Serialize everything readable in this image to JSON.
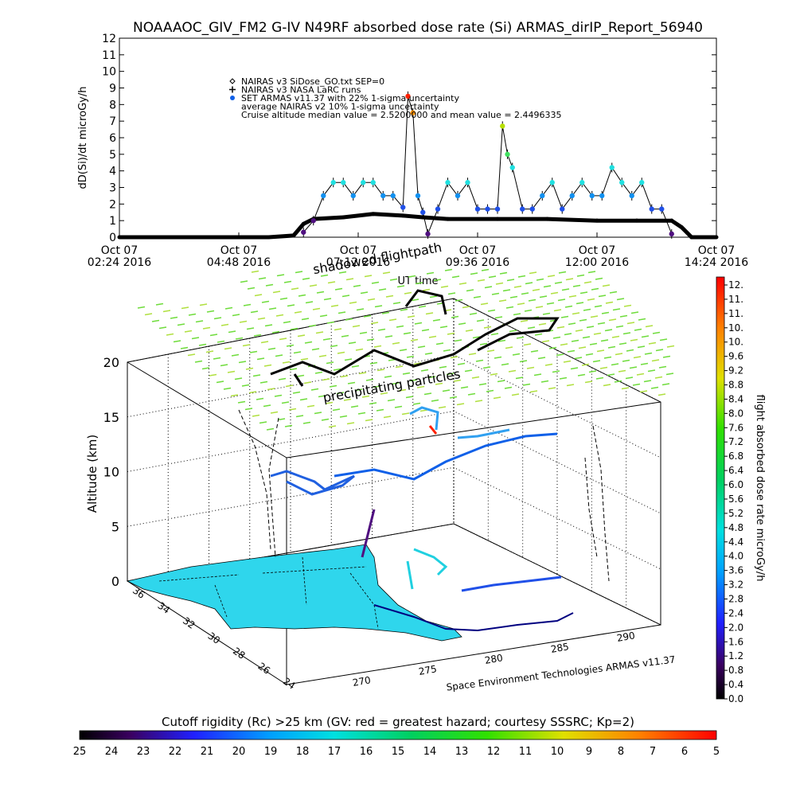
{
  "title": "NOAAAOC_GIV_FM2 G-IV   N49RF  absorbed dose rate (Si) ARMAS_dirIP_Report_56940",
  "chart_data": [
    {
      "type": "line",
      "ylabel": "dD(Si)/dt microGy/h",
      "xlabel": "UT time",
      "ylim": [
        0,
        12
      ],
      "yticks": [
        "0",
        "1",
        "2",
        "3",
        "4",
        "5",
        "6",
        "7",
        "8",
        "9",
        "10",
        "11",
        "12"
      ],
      "xticks": [
        {
          "date": "Oct 07",
          "time": "02:24 2016"
        },
        {
          "date": "Oct 07",
          "time": "04:48 2016"
        },
        {
          "date": "Oct 07",
          "time": "07:12 2016"
        },
        {
          "date": "Oct 07",
          "time": "09:36 2016"
        },
        {
          "date": "Oct 07",
          "time": "12:00 2016"
        },
        {
          "date": "Oct 07",
          "time": "14:24 2016"
        }
      ],
      "legend": [
        {
          "symbol": "diamond",
          "label": "NAIRAS v3 SiDose_GO.txt SEP=0"
        },
        {
          "symbol": "plus",
          "label": "NAIRAS v3 NASA LaRC runs"
        },
        {
          "symbol": "dot",
          "label": "SET ARMAS v11.37 with 22% 1-sigma uncertainty"
        },
        {
          "symbol": "none",
          "label": "average NAIRAS v2 10% 1-sigma uncertainty"
        },
        {
          "symbol": "none",
          "label": "Cruise altitude median value = 2.5200000 and mean value = 2.4496335"
        }
      ],
      "series": [
        {
          "name": "SET ARMAS v11.37 with 22% 1-sigma uncertainty",
          "x": [
            "06:06",
            "06:18",
            "06:30",
            "06:42",
            "06:54",
            "07:06",
            "07:18",
            "07:30",
            "07:42",
            "07:54",
            "08:06",
            "08:12",
            "08:18",
            "08:24",
            "08:30",
            "08:36",
            "08:48",
            "09:00",
            "09:12",
            "09:24",
            "09:36",
            "09:48",
            "10:00",
            "10:06",
            "10:12",
            "10:18",
            "10:30",
            "10:42",
            "10:54",
            "11:06",
            "11:18",
            "11:30",
            "11:42",
            "11:54",
            "12:06",
            "12:18",
            "12:30",
            "12:42",
            "12:54",
            "13:06",
            "13:18",
            "13:30"
          ],
          "y": [
            0.3,
            1.0,
            2.5,
            3.3,
            3.3,
            2.5,
            3.3,
            3.3,
            2.5,
            2.5,
            1.8,
            8.5,
            7.5,
            2.5,
            1.5,
            0.2,
            1.7,
            3.3,
            2.5,
            3.3,
            1.7,
            1.7,
            1.7,
            6.7,
            5.0,
            4.2,
            1.7,
            1.7,
            2.5,
            3.3,
            1.7,
            2.5,
            3.3,
            2.5,
            2.5,
            4.2,
            3.3,
            2.5,
            3.3,
            1.7,
            1.7,
            0.2
          ]
        },
        {
          "name": "NAIRAS v3 SiDose_GO.txt SEP=0",
          "x": [
            "02:24",
            "05:24",
            "05:54",
            "06:06",
            "06:18",
            "06:54",
            "07:30",
            "08:06",
            "08:30",
            "09:00",
            "10:00",
            "11:00",
            "12:00",
            "12:48",
            "13:30",
            "13:42",
            "13:54",
            "14:24"
          ],
          "y": [
            0,
            0,
            0.1,
            0.8,
            1.1,
            1.2,
            1.4,
            1.3,
            1.2,
            1.1,
            1.1,
            1.1,
            1.0,
            1.0,
            1.0,
            0.6,
            0,
            0
          ]
        }
      ]
    },
    {
      "type": "scatter",
      "title": "shadowed flightpath",
      "annotation": "precipitating particles",
      "zlabel": "Altitude (km)",
      "zticks": [
        "0",
        "5",
        "10",
        "15",
        "20"
      ],
      "lat_ticks": [
        "36",
        "34",
        "32",
        "30",
        "28",
        "26",
        "24"
      ],
      "lon_ticks": [
        "270",
        "275",
        "280",
        "285",
        "290"
      ],
      "credit": "Space Environment Technologies ARMAS v11.37",
      "colorbar": {
        "label": "flight absorbed dose rate microGy/h",
        "ticks": [
          "12.",
          "11.",
          "11.",
          "10.",
          "10.",
          "9.6",
          "9.2",
          "8.8",
          "8.4",
          "8.0",
          "7.6",
          "7.2",
          "6.8",
          "6.4",
          "6.0",
          "5.6",
          "5.2",
          "4.8",
          "4.4",
          "4.0",
          "3.6",
          "3.2",
          "2.8",
          "2.4",
          "2.0",
          "1.6",
          "1.2",
          "0.8",
          "0.4",
          "0.0"
        ]
      }
    }
  ],
  "cutoff_bar": {
    "label": "Cutoff rigidity (Rc) >25 km (GV: red = greatest hazard; courtesy SSSRC; Kp=2)",
    "ticks": [
      "25",
      "24",
      "23",
      "22",
      "21",
      "20",
      "19",
      "18",
      "17",
      "16",
      "15",
      "14",
      "13",
      "12",
      "11",
      "10",
      "9",
      "8",
      "7",
      "6",
      "5"
    ]
  },
  "colors": {
    "land": "#2fd6ec",
    "grid_dashes": "#6fdc3c",
    "armas_dot": "#1060e8",
    "high_dot": "#ff2000"
  }
}
